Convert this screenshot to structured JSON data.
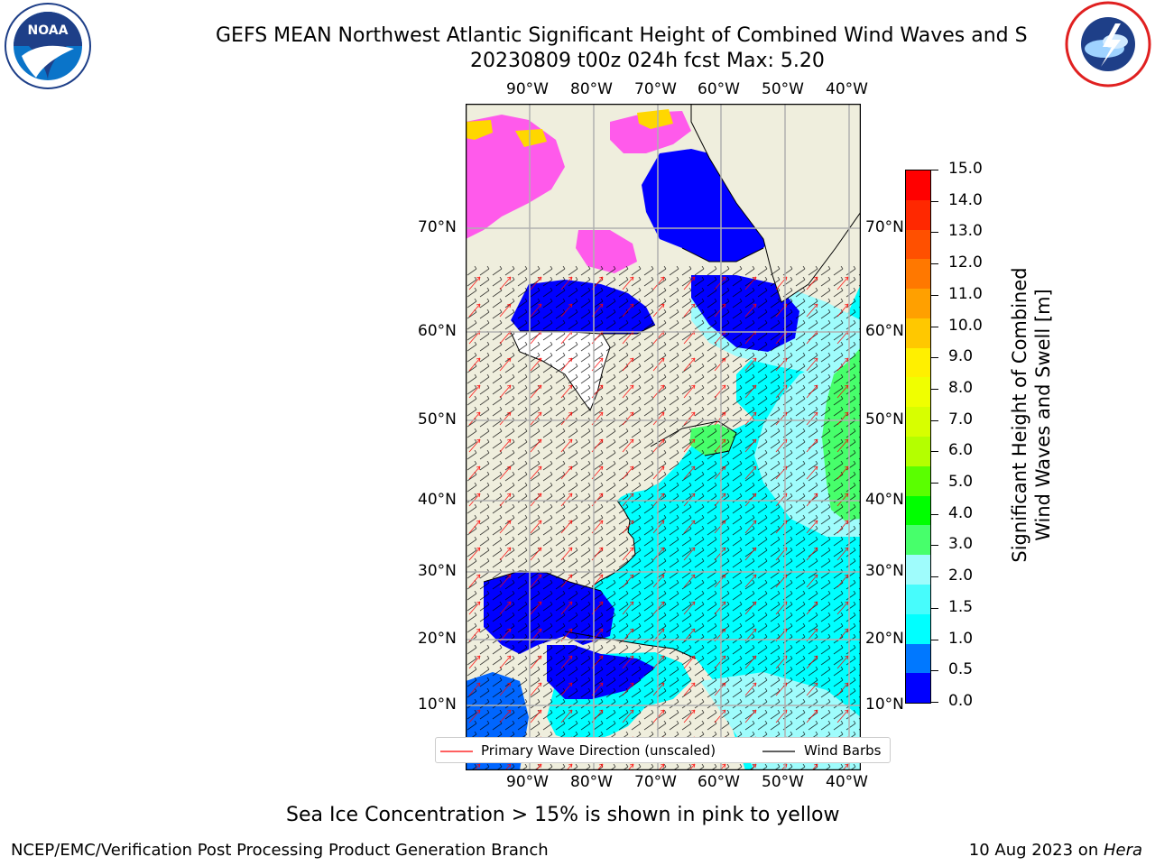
{
  "title": {
    "line1": "GEFS MEAN Northwest Atlantic Significant Height of Combined Wind Waves and S",
    "line2": "20230809 t00z 024h fcst   Max: 5.20"
  },
  "logos": {
    "left": {
      "name": "noaa-logo",
      "text": "NOAA"
    },
    "right": {
      "name": "nws-logo"
    }
  },
  "map": {
    "lon_ticks": [
      "90°W",
      "80°W",
      "70°W",
      "60°W",
      "50°W",
      "40°W"
    ],
    "lat_ticks_left": [
      "70°N",
      "60°N",
      "50°N",
      "40°N",
      "30°N",
      "20°N",
      "10°N"
    ],
    "lat_ticks_right": [
      "70°N",
      "60°N",
      "50°N",
      "40°N",
      "30°N",
      "20°N",
      "10°N"
    ],
    "colors": {
      "land": "#efeedd",
      "ocean_low": "#0000ff",
      "ocean_mid": "#00ffff",
      "ocean_light": "#9ffcfc",
      "ocean_green": "#47ff6b",
      "ice_pink": "#ff5aeb",
      "ice_yellow": "#ffd700",
      "grid": "#b0b0b0"
    }
  },
  "legend": {
    "primary_wave": "Primary Wave Direction (unscaled)",
    "wind_barbs": "Wind Barbs",
    "primary_wave_color": "#ff0000",
    "wind_barbs_color": "#000000"
  },
  "colorbar": {
    "ticks": [
      "15.0",
      "14.0",
      "13.0",
      "12.0",
      "11.0",
      "10.0",
      "9.0",
      "8.0",
      "7.0",
      "6.0",
      "5.0",
      "4.0",
      "3.0",
      "2.0",
      "1.5",
      "1.0",
      "0.5",
      "0.0"
    ],
    "colors_top_to_bottom": [
      "#ff0000",
      "#ff2800",
      "#ff5000",
      "#ff7800",
      "#ffa000",
      "#ffc800",
      "#fff000",
      "#f0ff00",
      "#d7ff00",
      "#b4ff00",
      "#5aff00",
      "#00ff00",
      "#47ff6b",
      "#9ffcfc",
      "#47fcfc",
      "#00ffff",
      "#0078ff",
      "#0000ff"
    ],
    "label_line1": "Significant Height of Combined",
    "label_line2": "Wind Waves and Swell [m]"
  },
  "note": "Sea Ice Concentration > 15% is shown in pink to yellow",
  "footer": {
    "left": "NCEP/EMC/Verification Post Processing Product Generation Branch",
    "right_date": "10 Aug 2023 on ",
    "right_host": "Hera"
  }
}
